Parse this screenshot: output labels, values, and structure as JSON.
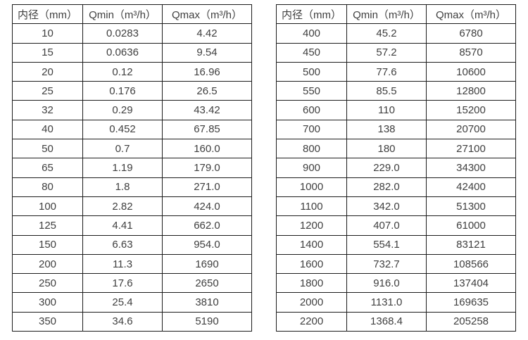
{
  "colors": {
    "background": "#ffffff",
    "border": "#1c1c1c",
    "text": "#3f3f3f"
  },
  "tables": [
    {
      "name": "flow-range-table-small-diameters",
      "headers": [
        "内径（mm）",
        "Qmin（m³/h）",
        "Qmax（m³/h）"
      ],
      "rows": [
        [
          "10",
          "0.0283",
          "4.42"
        ],
        [
          "15",
          "0.0636",
          "9.54"
        ],
        [
          "20",
          "0.12",
          "16.96"
        ],
        [
          "25",
          "0.176",
          "26.5"
        ],
        [
          "32",
          "0.29",
          "43.42"
        ],
        [
          "40",
          "0.452",
          "67.85"
        ],
        [
          "50",
          "0.7",
          "160.0"
        ],
        [
          "65",
          "1.19",
          "179.0"
        ],
        [
          "80",
          "1.8",
          "271.0"
        ],
        [
          "100",
          "2.82",
          "424.0"
        ],
        [
          "125",
          "4.41",
          "662.0"
        ],
        [
          "150",
          "6.63",
          "954.0"
        ],
        [
          "200",
          "11.3",
          "1690"
        ],
        [
          "250",
          "17.6",
          "2650"
        ],
        [
          "300",
          "25.4",
          "3810"
        ],
        [
          "350",
          "34.6",
          "5190"
        ]
      ]
    },
    {
      "name": "flow-range-table-large-diameters",
      "headers": [
        "内径（mm）",
        "Qmin（m³/h）",
        "Qmax（m³/h）"
      ],
      "rows": [
        [
          "400",
          "45.2",
          "6780"
        ],
        [
          "450",
          "57.2",
          "8570"
        ],
        [
          "500",
          "77.6",
          "10600"
        ],
        [
          "550",
          "85.5",
          "12800"
        ],
        [
          "600",
          "110",
          "15200"
        ],
        [
          "700",
          "138",
          "20700"
        ],
        [
          "800",
          "180",
          "27100"
        ],
        [
          "900",
          "229.0",
          "34300"
        ],
        [
          "1000",
          "282.0",
          "42400"
        ],
        [
          "1100",
          "342.0",
          "51300"
        ],
        [
          "1200",
          "407.0",
          "61000"
        ],
        [
          "1400",
          "554.1",
          "83121"
        ],
        [
          "1600",
          "732.7",
          "108566"
        ],
        [
          "1800",
          "916.0",
          "137404"
        ],
        [
          "2000",
          "1131.0",
          "169635"
        ],
        [
          "2200",
          "1368.4",
          "205258"
        ]
      ]
    }
  ]
}
